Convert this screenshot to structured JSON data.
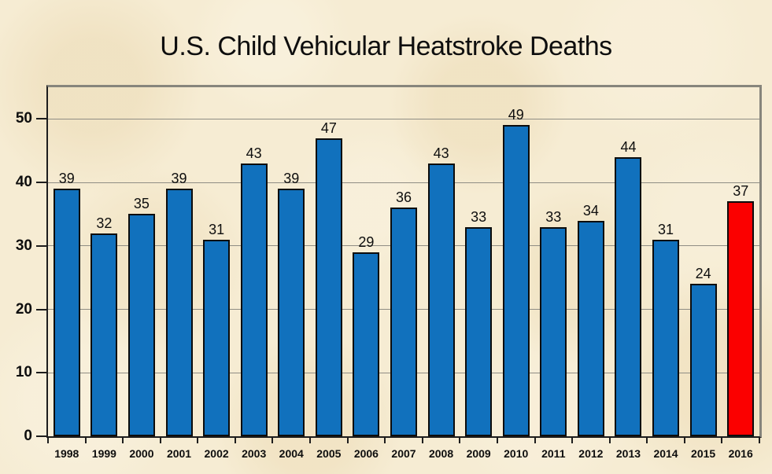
{
  "title": "U.S. Child Vehicular Heatstroke Deaths",
  "colors": {
    "bar": "#1171bd",
    "bar_outline": "#0c0c0c",
    "highlight": "#fb0000",
    "background": "#f6ecd3",
    "gridline": "#8f8d84",
    "frame": "#87857c",
    "axis": "#1d1d1d",
    "text": "#0e0e0e"
  },
  "chart_data": {
    "type": "bar",
    "title": "U.S. Child Vehicular Heatstroke Deaths",
    "categories": [
      "1998",
      "1999",
      "2000",
      "2001",
      "2002",
      "2003",
      "2004",
      "2005",
      "2006",
      "2007",
      "2008",
      "2009",
      "2010",
      "2011",
      "2012",
      "2013",
      "2014",
      "2015",
      "2016"
    ],
    "values": [
      39,
      32,
      35,
      39,
      31,
      43,
      39,
      47,
      29,
      36,
      43,
      33,
      49,
      33,
      34,
      44,
      31,
      24,
      37
    ],
    "data_labels_shown": true,
    "highlight": {
      "category": "2016",
      "index": 18,
      "color": "#fb0000"
    },
    "xlabel": "",
    "ylabel": "",
    "ylim": [
      0,
      55
    ],
    "yticks": [
      0,
      10,
      20,
      30,
      40,
      50
    ],
    "grid": "horizontal",
    "legend": "none"
  }
}
